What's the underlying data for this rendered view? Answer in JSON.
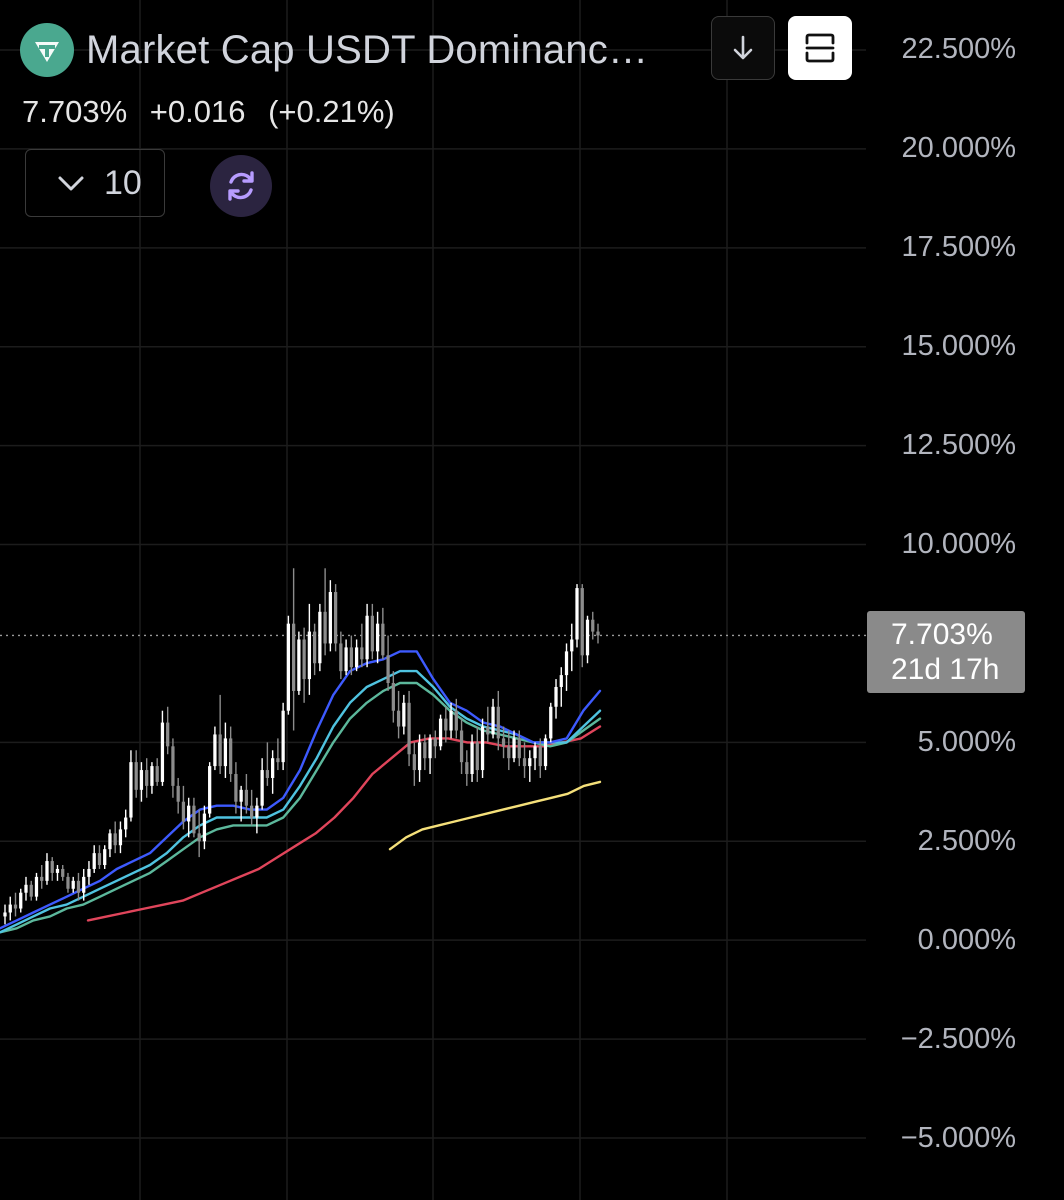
{
  "header": {
    "symbol_title": "Market Cap USDT Dominanc…",
    "logo_icon": "tether-icon",
    "logo_color": "#4aa88f"
  },
  "toolbar": {
    "download_icon": "arrow-down-icon",
    "fullscreen_icon": "fullscreen-icon",
    "interval_value": "10",
    "refresh_icon": "refresh-icon"
  },
  "quote": {
    "last": "7.703%",
    "change": "+0.016",
    "change_pct": "(+0.21%)"
  },
  "price_tag": {
    "value": "7.703%",
    "countdown": "21d 17h"
  },
  "colors": {
    "background": "#000000",
    "candle_up": "#ffffff",
    "candle_down": "#8c8c8c",
    "ema_fast": "#3d5afe",
    "ema_mid1": "#4fc3e0",
    "ema_mid2": "#5cb89c",
    "ema_slow": "#e0455b",
    "ma_long": "#f5e07a",
    "price_tag_bg": "#8a8a8a"
  },
  "chart_data": {
    "type": "candlestick",
    "ylim": [
      -5.0,
      22.5
    ],
    "y_ticks": [
      "22.500%",
      "20.000%",
      "17.500%",
      "15.000%",
      "12.500%",
      "10.000%",
      "7.703%",
      "5.000%",
      "2.500%",
      "0.000%",
      "−2.500%",
      "−5.000%"
    ],
    "y_tick_values": [
      22.5,
      20.0,
      17.5,
      15.0,
      12.5,
      10.0,
      5.0,
      2.5,
      0.0,
      -2.5,
      -5.0
    ],
    "last_price": 7.703,
    "candles": [
      [
        0.6,
        0.9,
        0.4,
        0.7
      ],
      [
        0.7,
        1.1,
        0.5,
        0.9
      ],
      [
        0.9,
        1.2,
        0.6,
        0.8
      ],
      [
        0.8,
        1.3,
        0.7,
        1.2
      ],
      [
        1.2,
        1.6,
        1.0,
        1.4
      ],
      [
        1.4,
        1.5,
        1.0,
        1.1
      ],
      [
        1.1,
        1.7,
        1.0,
        1.6
      ],
      [
        1.6,
        1.9,
        1.3,
        1.5
      ],
      [
        1.5,
        2.2,
        1.4,
        2.0
      ],
      [
        2.0,
        2.1,
        1.5,
        1.7
      ],
      [
        1.7,
        1.9,
        1.5,
        1.8
      ],
      [
        1.8,
        1.9,
        1.5,
        1.6
      ],
      [
        1.6,
        1.7,
        1.2,
        1.3
      ],
      [
        1.3,
        1.6,
        1.2,
        1.5
      ],
      [
        1.5,
        1.7,
        1.0,
        1.2
      ],
      [
        1.2,
        1.8,
        1.0,
        1.6
      ],
      [
        1.6,
        2.0,
        1.4,
        1.8
      ],
      [
        1.8,
        2.4,
        1.7,
        2.2
      ],
      [
        2.2,
        2.4,
        1.8,
        1.9
      ],
      [
        1.9,
        2.4,
        1.8,
        2.3
      ],
      [
        2.3,
        2.8,
        2.1,
        2.7
      ],
      [
        2.7,
        3.0,
        2.2,
        2.4
      ],
      [
        2.4,
        3.0,
        2.2,
        2.8
      ],
      [
        2.8,
        3.3,
        2.6,
        3.1
      ],
      [
        3.1,
        4.8,
        3.0,
        4.5
      ],
      [
        4.5,
        4.8,
        3.6,
        3.8
      ],
      [
        3.8,
        4.5,
        3.5,
        4.3
      ],
      [
        4.3,
        4.6,
        3.6,
        3.9
      ],
      [
        3.9,
        4.5,
        3.7,
        4.4
      ],
      [
        4.4,
        4.6,
        3.9,
        4.0
      ],
      [
        4.0,
        5.8,
        3.9,
        5.5
      ],
      [
        5.5,
        5.9,
        4.7,
        4.9
      ],
      [
        4.9,
        5.1,
        3.6,
        3.9
      ],
      [
        3.9,
        4.1,
        3.2,
        3.5
      ],
      [
        3.5,
        3.9,
        2.8,
        3.0
      ],
      [
        3.0,
        3.6,
        2.6,
        3.4
      ],
      [
        3.4,
        3.6,
        2.6,
        2.7
      ],
      [
        2.7,
        3.3,
        2.1,
        2.5
      ],
      [
        2.5,
        3.4,
        2.3,
        3.2
      ],
      [
        3.2,
        4.5,
        3.1,
        4.4
      ],
      [
        4.4,
        5.4,
        4.3,
        5.2
      ],
      [
        5.2,
        6.2,
        4.2,
        4.4
      ],
      [
        4.4,
        5.5,
        4.1,
        5.1
      ],
      [
        5.1,
        5.4,
        4.0,
        4.2
      ],
      [
        4.2,
        4.5,
        3.2,
        3.5
      ],
      [
        3.5,
        3.9,
        3.0,
        3.8
      ],
      [
        3.8,
        4.2,
        3.2,
        3.4
      ],
      [
        3.4,
        3.8,
        2.9,
        3.1
      ],
      [
        3.1,
        3.6,
        2.7,
        3.4
      ],
      [
        3.4,
        4.6,
        3.3,
        4.3
      ],
      [
        4.3,
        5.0,
        3.9,
        4.1
      ],
      [
        4.1,
        4.8,
        3.7,
        4.6
      ],
      [
        4.6,
        5.1,
        4.3,
        4.5
      ],
      [
        4.5,
        6.0,
        4.3,
        5.8
      ],
      [
        5.8,
        8.2,
        5.7,
        8.0
      ],
      [
        8.0,
        9.4,
        5.3,
        6.3
      ],
      [
        6.3,
        7.8,
        6.2,
        7.6
      ],
      [
        7.6,
        7.9,
        6.0,
        6.6
      ],
      [
        6.6,
        8.5,
        6.2,
        7.8
      ],
      [
        7.8,
        8.0,
        6.7,
        7.0
      ],
      [
        7.0,
        8.5,
        6.8,
        8.3
      ],
      [
        8.3,
        9.4,
        7.2,
        7.5
      ],
      [
        7.5,
        9.1,
        7.3,
        8.8
      ],
      [
        8.8,
        9.0,
        7.3,
        7.5
      ],
      [
        7.5,
        7.8,
        6.6,
        6.8
      ],
      [
        6.8,
        7.6,
        6.7,
        7.4
      ],
      [
        7.4,
        7.7,
        6.7,
        6.9
      ],
      [
        6.9,
        7.6,
        6.8,
        7.4
      ],
      [
        7.4,
        8.0,
        6.9,
        7.1
      ],
      [
        7.1,
        8.5,
        6.9,
        8.2
      ],
      [
        8.2,
        8.5,
        7.1,
        7.3
      ],
      [
        7.3,
        8.3,
        7.0,
        8.0
      ],
      [
        8.0,
        8.4,
        7.1,
        7.2
      ],
      [
        7.2,
        7.7,
        6.3,
        6.5
      ],
      [
        6.5,
        6.8,
        5.5,
        5.8
      ],
      [
        5.8,
        6.3,
        5.1,
        5.4
      ],
      [
        5.4,
        6.2,
        5.2,
        6.0
      ],
      [
        6.0,
        6.3,
        4.4,
        4.7
      ],
      [
        4.7,
        5.0,
        3.9,
        4.3
      ],
      [
        4.3,
        5.2,
        4.0,
        5.0
      ],
      [
        5.0,
        5.2,
        4.3,
        4.6
      ],
      [
        4.6,
        5.2,
        4.2,
        5.1
      ],
      [
        5.1,
        5.3,
        4.6,
        4.9
      ],
      [
        4.9,
        5.7,
        4.8,
        5.6
      ],
      [
        5.6,
        5.9,
        5.0,
        5.3
      ],
      [
        5.3,
        6.0,
        5.1,
        5.8
      ],
      [
        5.8,
        6.1,
        5.1,
        5.3
      ],
      [
        5.3,
        5.6,
        4.2,
        4.5
      ],
      [
        4.5,
        4.8,
        3.9,
        4.2
      ],
      [
        4.2,
        5.2,
        4.0,
        5.0
      ],
      [
        5.0,
        5.4,
        4.0,
        4.3
      ],
      [
        4.3,
        5.6,
        4.1,
        5.4
      ],
      [
        5.4,
        5.9,
        5.0,
        5.2
      ],
      [
        5.2,
        6.1,
        5.1,
        5.9
      ],
      [
        5.9,
        6.3,
        4.8,
        5.1
      ],
      [
        5.1,
        5.4,
        4.6,
        4.9
      ],
      [
        4.9,
        5.3,
        4.3,
        4.6
      ],
      [
        4.6,
        5.3,
        4.5,
        5.1
      ],
      [
        5.1,
        5.3,
        4.4,
        4.6
      ],
      [
        4.6,
        5.0,
        4.1,
        4.4
      ],
      [
        4.4,
        4.8,
        4.0,
        4.6
      ],
      [
        4.6,
        5.0,
        4.3,
        4.9
      ],
      [
        4.9,
        5.1,
        4.1,
        4.4
      ],
      [
        4.4,
        5.2,
        4.3,
        5.1
      ],
      [
        5.1,
        6.0,
        5.0,
        5.9
      ],
      [
        5.9,
        6.6,
        5.6,
        6.4
      ],
      [
        6.4,
        6.9,
        5.9,
        6.7
      ],
      [
        6.7,
        7.5,
        6.3,
        7.3
      ],
      [
        7.3,
        8.0,
        6.8,
        7.6
      ],
      [
        7.6,
        9.0,
        7.4,
        8.9
      ],
      [
        8.9,
        9.0,
        6.9,
        7.2
      ],
      [
        7.2,
        8.2,
        7.0,
        8.1
      ],
      [
        8.1,
        8.3,
        7.6,
        7.8
      ],
      [
        7.8,
        8.0,
        7.5,
        7.703
      ]
    ],
    "ema_fast": [
      0.3,
      0.5,
      0.7,
      0.9,
      1.1,
      1.3,
      1.5,
      1.8,
      2.0,
      2.2,
      2.6,
      3.0,
      3.3,
      3.4,
      3.4,
      3.3,
      3.3,
      3.6,
      4.3,
      5.3,
      6.2,
      6.8,
      7.0,
      7.1,
      7.3,
      7.3,
      6.6,
      6.0,
      5.8,
      5.5,
      5.4,
      5.2,
      5.0,
      5.0,
      5.1,
      5.8,
      6.3
    ],
    "ema_mid1": [
      0.2,
      0.4,
      0.6,
      0.8,
      0.9,
      1.1,
      1.3,
      1.5,
      1.7,
      1.9,
      2.2,
      2.6,
      2.9,
      3.1,
      3.1,
      3.1,
      3.1,
      3.3,
      3.9,
      4.6,
      5.4,
      6.0,
      6.4,
      6.6,
      6.8,
      6.8,
      6.4,
      5.9,
      5.6,
      5.4,
      5.3,
      5.2,
      5.0,
      5.0,
      5.0,
      5.4,
      5.8
    ],
    "ema_mid2": [
      0.2,
      0.3,
      0.5,
      0.6,
      0.8,
      0.9,
      1.1,
      1.3,
      1.5,
      1.7,
      2.0,
      2.3,
      2.6,
      2.8,
      2.9,
      2.9,
      2.9,
      3.1,
      3.6,
      4.3,
      5.0,
      5.6,
      6.0,
      6.3,
      6.5,
      6.5,
      6.2,
      5.8,
      5.5,
      5.3,
      5.2,
      5.1,
      5.0,
      4.9,
      5.0,
      5.3,
      5.6
    ],
    "ema_slow": [
      0.5,
      0.6,
      0.7,
      0.8,
      0.9,
      1.0,
      1.2,
      1.4,
      1.6,
      1.8,
      2.1,
      2.4,
      2.7,
      3.1,
      3.6,
      4.2,
      4.6,
      5.0,
      5.1,
      5.1,
      5.0,
      5.0,
      4.9,
      4.9,
      4.9,
      5.0,
      5.1,
      5.4
    ],
    "ma_long": [
      2.3,
      2.6,
      2.8,
      2.9,
      3.0,
      3.1,
      3.2,
      3.3,
      3.4,
      3.5,
      3.6,
      3.7,
      3.9,
      4.0
    ]
  }
}
